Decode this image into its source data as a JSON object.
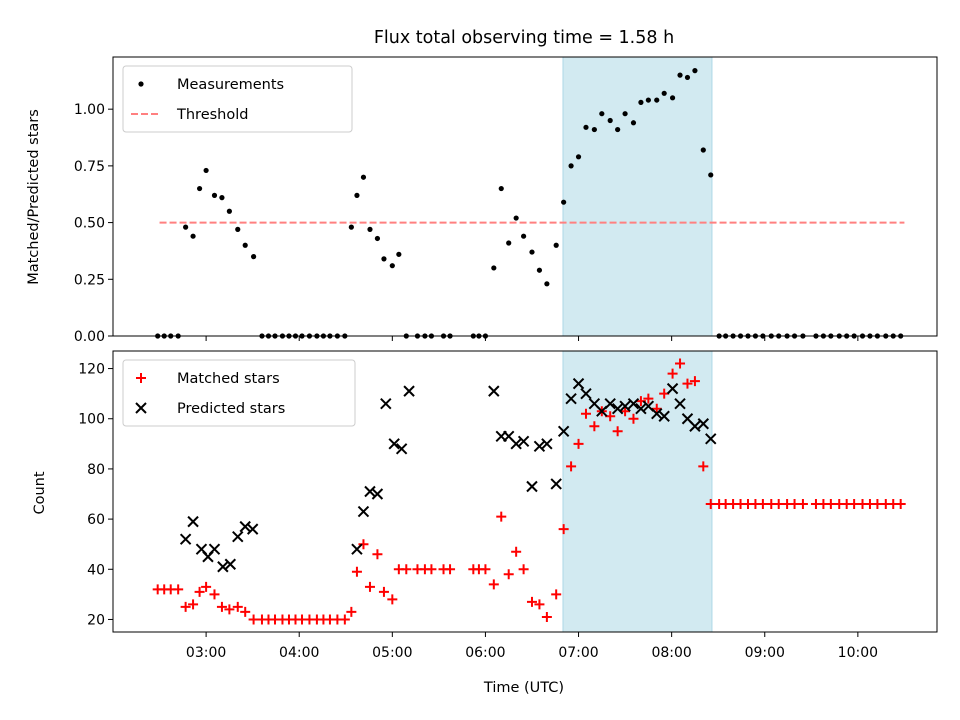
{
  "title": "Flux total observing time = 1.58 h",
  "colors": {
    "shade": "#add8e6",
    "threshold": "#ff8080",
    "matched": "#ff0000",
    "predicted": "#000000",
    "measure": "#000000"
  },
  "chart_data": [
    {
      "type": "scatter",
      "ylabel": "Matched/Predicted stars",
      "ylim": [
        0,
        1.23
      ],
      "yticks": [
        "0.00",
        "0.25",
        "0.50",
        "0.75",
        "1.00"
      ],
      "ytick_values": [
        0,
        0.25,
        0.5,
        0.75,
        1.0
      ],
      "xlim": [
        2.0,
        10.85
      ],
      "xtick_values": [
        3,
        4,
        5,
        6,
        7,
        8,
        9,
        10
      ],
      "shaded_x": [
        6.833,
        8.433
      ],
      "legend": {
        "placement": "upper-left",
        "entries": [
          "Measurements",
          "Threshold"
        ]
      },
      "threshold": {
        "name": "Threshold",
        "value": 0.5,
        "x": [
          2.5,
          10.5
        ]
      },
      "series": [
        {
          "name": "Measurements",
          "x": [
            2.48,
            2.55,
            2.62,
            2.7,
            2.78,
            2.86,
            2.93,
            3.0,
            3.09,
            3.17,
            3.25,
            3.34,
            3.42,
            3.51,
            3.6,
            3.67,
            3.74,
            3.82,
            3.89,
            3.96,
            4.03,
            4.11,
            4.19,
            4.26,
            4.33,
            4.41,
            4.49,
            4.56,
            4.62,
            4.69,
            4.76,
            4.84,
            4.91,
            5.0,
            5.07,
            5.15,
            5.27,
            5.35,
            5.42,
            5.55,
            5.62,
            5.87,
            5.93,
            6.0,
            6.09,
            6.17,
            6.25,
            6.33,
            6.41,
            6.5,
            6.58,
            6.66,
            6.76,
            6.84,
            6.92,
            7.0,
            7.08,
            7.17,
            7.25,
            7.34,
            7.42,
            7.5,
            7.59,
            7.67,
            7.75,
            7.84,
            7.92,
            8.01,
            8.09,
            8.17,
            8.25,
            8.34,
            8.42,
            8.51,
            8.58,
            8.66,
            8.74,
            8.82,
            8.9,
            8.98,
            9.07,
            9.15,
            9.24,
            9.32,
            9.41,
            9.55,
            9.63,
            9.71,
            9.8,
            9.88,
            9.96,
            10.05,
            10.13,
            10.21,
            10.3,
            10.38,
            10.46
          ],
          "values": [
            0,
            0,
            0,
            0,
            0.48,
            0.44,
            0.65,
            0.73,
            0.62,
            0.61,
            0.55,
            0.47,
            0.4,
            0.35,
            0,
            0,
            0,
            0,
            0,
            0,
            0,
            0,
            0,
            0,
            0,
            0,
            0,
            0.48,
            0.62,
            0.7,
            0.47,
            0.43,
            0.34,
            0.31,
            0.36,
            0,
            0,
            0,
            0,
            0,
            0,
            0,
            0,
            0,
            0.3,
            0.65,
            0.41,
            0.52,
            0.44,
            0.37,
            0.29,
            0.23,
            0.4,
            0.59,
            0.75,
            0.79,
            0.92,
            0.91,
            0.98,
            0.95,
            0.91,
            0.98,
            0.94,
            1.03,
            1.04,
            1.04,
            1.07,
            1.05,
            1.15,
            1.14,
            1.17,
            0.82,
            0.71,
            0,
            0,
            0,
            0,
            0,
            0,
            0,
            0,
            0,
            0,
            0,
            0,
            0,
            0,
            0,
            0,
            0,
            0,
            0,
            0,
            0,
            0,
            0,
            0
          ]
        }
      ]
    },
    {
      "type": "scatter",
      "xlabel": "Time (UTC)",
      "ylabel": "Count",
      "ylim": [
        15,
        127
      ],
      "yticks": [
        "20",
        "40",
        "60",
        "80",
        "100",
        "120"
      ],
      "ytick_values": [
        20,
        40,
        60,
        80,
        100,
        120
      ],
      "xlim": [
        2.0,
        10.85
      ],
      "xticks": [
        "03:00",
        "04:00",
        "05:00",
        "06:00",
        "07:00",
        "08:00",
        "09:00",
        "10:00"
      ],
      "xtick_values": [
        3,
        4,
        5,
        6,
        7,
        8,
        9,
        10
      ],
      "shaded_x": [
        6.833,
        8.433
      ],
      "legend": {
        "placement": "upper-left",
        "entries": [
          "Matched stars",
          "Predicted stars"
        ]
      },
      "series": [
        {
          "name": "Matched stars",
          "marker": "+",
          "x": [
            2.48,
            2.55,
            2.62,
            2.7,
            2.78,
            2.86,
            2.93,
            3.0,
            3.09,
            3.17,
            3.25,
            3.34,
            3.42,
            3.51,
            3.6,
            3.67,
            3.74,
            3.82,
            3.89,
            3.96,
            4.03,
            4.11,
            4.19,
            4.26,
            4.33,
            4.41,
            4.49,
            4.56,
            4.62,
            4.69,
            4.76,
            4.84,
            4.91,
            5.0,
            5.07,
            5.15,
            5.27,
            5.35,
            5.42,
            5.55,
            5.62,
            5.87,
            5.93,
            6.0,
            6.09,
            6.17,
            6.25,
            6.33,
            6.41,
            6.5,
            6.58,
            6.66,
            6.76,
            6.84,
            6.92,
            7.0,
            7.08,
            7.17,
            7.25,
            7.34,
            7.42,
            7.5,
            7.59,
            7.67,
            7.75,
            7.84,
            7.92,
            8.01,
            8.09,
            8.17,
            8.25,
            8.34,
            8.42,
            8.51,
            8.58,
            8.66,
            8.74,
            8.82,
            8.9,
            8.98,
            9.07,
            9.15,
            9.24,
            9.32,
            9.41,
            9.55,
            9.63,
            9.71,
            9.8,
            9.88,
            9.96,
            10.05,
            10.13,
            10.21,
            10.3,
            10.38,
            10.46
          ],
          "values": [
            32,
            32,
            32,
            32,
            25,
            26,
            31,
            33,
            30,
            25,
            24,
            25,
            23,
            20,
            20,
            20,
            20,
            20,
            20,
            20,
            20,
            20,
            20,
            20,
            20,
            20,
            20,
            23,
            39,
            50,
            33,
            46,
            31,
            28,
            40,
            40,
            40,
            40,
            40,
            40,
            40,
            40,
            40,
            40,
            34,
            61,
            38,
            47,
            40,
            27,
            26,
            21,
            30,
            56,
            81,
            90,
            102,
            97,
            103,
            101,
            95,
            103,
            100,
            107,
            108,
            104,
            110,
            118,
            122,
            114,
            115,
            81,
            66,
            66,
            66,
            66,
            66,
            66,
            66,
            66,
            66,
            66,
            66,
            66,
            66,
            66,
            66,
            66,
            66,
            66,
            66,
            66,
            66,
            66,
            66,
            66,
            66
          ]
        },
        {
          "name": "Predicted stars",
          "marker": "x",
          "x": [
            2.78,
            2.86,
            2.95,
            3.02,
            3.09,
            3.18,
            3.26,
            3.34,
            3.42,
            3.5,
            4.62,
            4.69,
            4.76,
            4.84,
            4.93,
            5.02,
            5.1,
            5.18,
            6.09,
            6.17,
            6.25,
            6.33,
            6.41,
            6.5,
            6.58,
            6.66,
            6.76,
            6.84,
            6.92,
            7.0,
            7.08,
            7.17,
            7.25,
            7.34,
            7.42,
            7.5,
            7.59,
            7.67,
            7.75,
            7.84,
            7.92,
            8.01,
            8.09,
            8.17,
            8.25,
            8.34,
            8.42
          ],
          "values": [
            52,
            59,
            48,
            45,
            48,
            41,
            42,
            53,
            57,
            56,
            48,
            63,
            71,
            70,
            106,
            90,
            88,
            111,
            111,
            93,
            93,
            90,
            91,
            73,
            89,
            90,
            74,
            95,
            108,
            114,
            110,
            106,
            103,
            106,
            104,
            105,
            106,
            104,
            105,
            102,
            101,
            112,
            106,
            100,
            97,
            98,
            92
          ]
        }
      ]
    }
  ]
}
